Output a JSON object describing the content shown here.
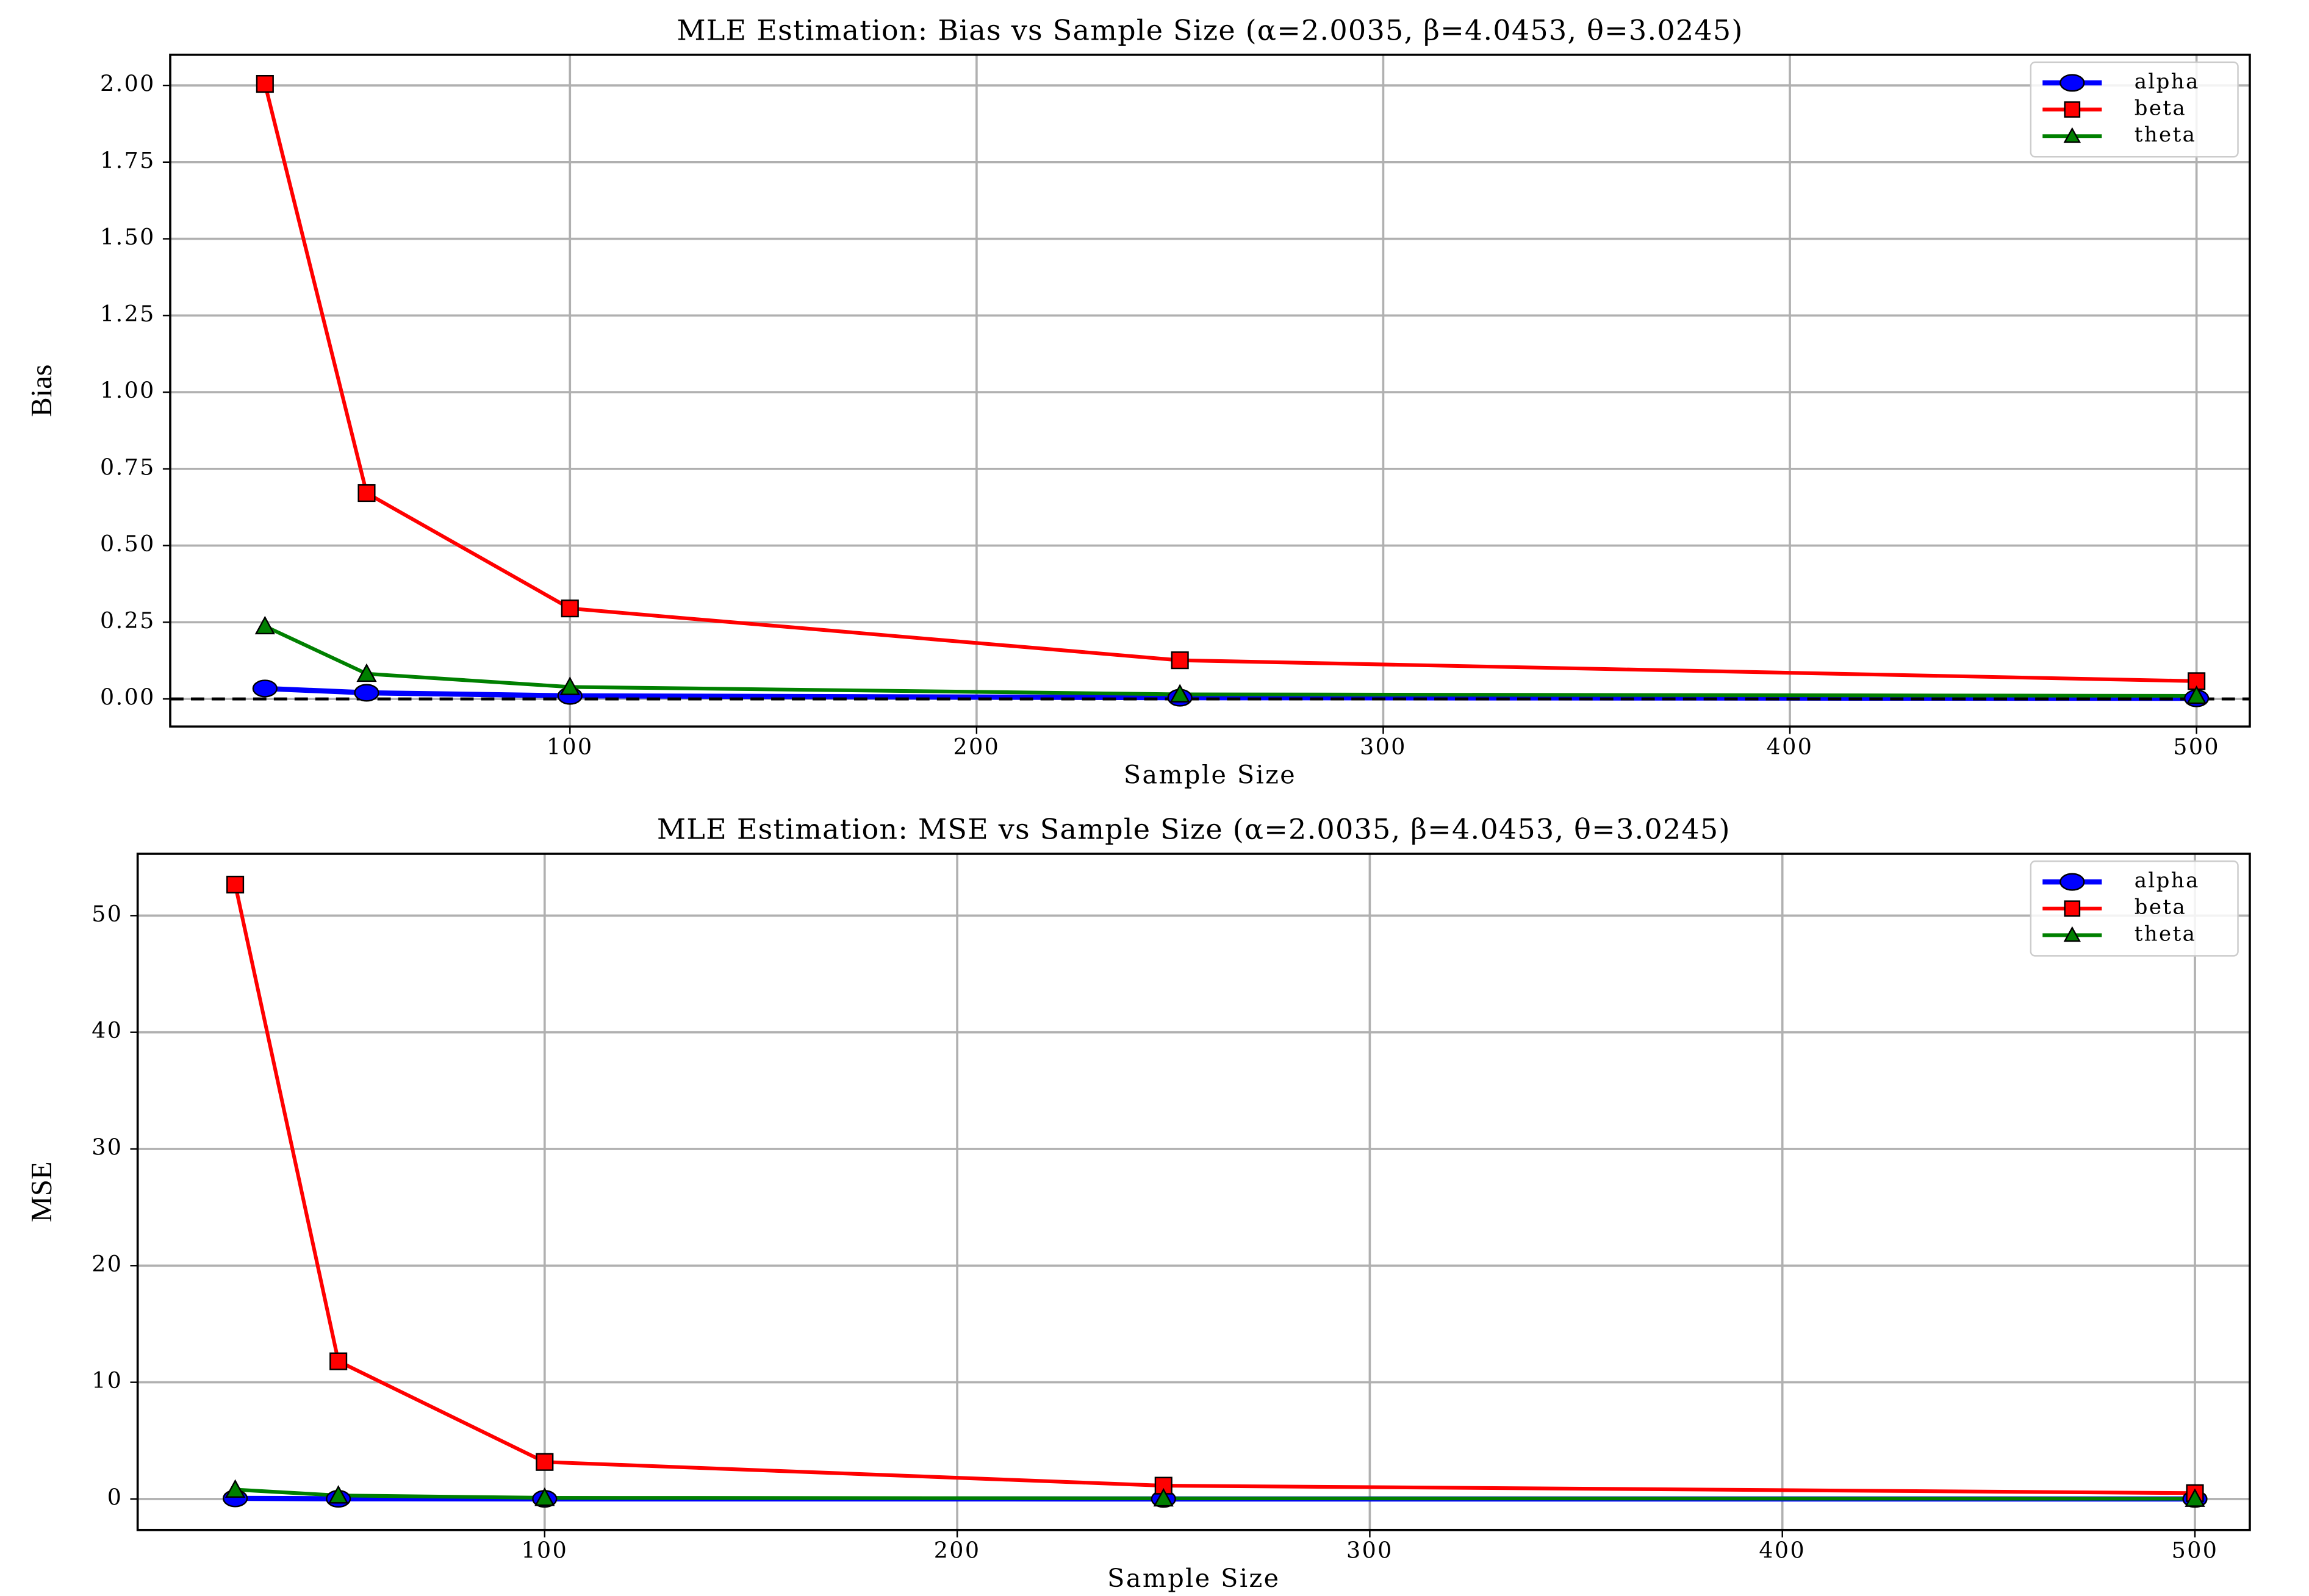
{
  "chart_data": [
    {
      "type": "line",
      "title": "MLE Estimation: Bias vs Sample Size (α=2.0035, β=4.0453, θ=3.0245)",
      "xlabel": "Sample Size",
      "ylabel": "Bias",
      "x": [
        25,
        50,
        100,
        250,
        500
      ],
      "series": [
        {
          "name": "alpha",
          "color": "#0000ff",
          "marker": "circle",
          "values": [
            0.034,
            0.02,
            0.01,
            0.004,
            0.002
          ]
        },
        {
          "name": "beta",
          "color": "#ff0000",
          "marker": "square",
          "values": [
            2.005,
            0.671,
            0.295,
            0.126,
            0.058
          ]
        },
        {
          "name": "theta",
          "color": "#008000",
          "marker": "triangle",
          "values": [
            0.237,
            0.082,
            0.039,
            0.015,
            0.01
          ]
        }
      ],
      "hline": 0,
      "xlim": [
        1.7,
        513.1
      ],
      "ylim": [
        -0.09,
        2.1
      ],
      "xticks": [
        100,
        200,
        300,
        400,
        500
      ],
      "yticks": [
        {
          "value": 0,
          "label": "0.00"
        },
        {
          "value": 0.25,
          "label": "0.25"
        },
        {
          "value": 0.5,
          "label": "0.50"
        },
        {
          "value": 0.75,
          "label": "0.75"
        },
        {
          "value": 1,
          "label": "1.00"
        },
        {
          "value": 1.25,
          "label": "1.25"
        },
        {
          "value": 1.5,
          "label": "1.50"
        },
        {
          "value": 1.75,
          "label": "1.75"
        },
        {
          "value": 2,
          "label": "2.00"
        }
      ],
      "grid": true,
      "legend": "upper right"
    },
    {
      "type": "line",
      "title": "MLE Estimation: MSE vs Sample Size (α=2.0035, β=4.0453, θ=3.0245)",
      "xlabel": "Sample Size",
      "ylabel": "MSE",
      "x": [
        25,
        50,
        100,
        250,
        500
      ],
      "series": [
        {
          "name": "alpha",
          "color": "#0000ff",
          "marker": "circle",
          "values": [
            0.05,
            0.02,
            0.01,
            0.003,
            0.001
          ]
        },
        {
          "name": "beta",
          "color": "#ff0000",
          "marker": "square",
          "values": [
            52.66,
            11.8,
            3.17,
            1.14,
            0.5
          ]
        },
        {
          "name": "theta",
          "color": "#008000",
          "marker": "triangle",
          "values": [
            0.8,
            0.3,
            0.1,
            0.05,
            0.02
          ]
        }
      ],
      "xlim": [
        1.35,
        513.3
      ],
      "ylim": [
        -2.66,
        55.3
      ],
      "xticks": [
        100,
        200,
        300,
        400,
        500
      ],
      "yticks": [
        0,
        10,
        20,
        30,
        40,
        50
      ],
      "grid": true,
      "legend": "upper right"
    }
  ]
}
